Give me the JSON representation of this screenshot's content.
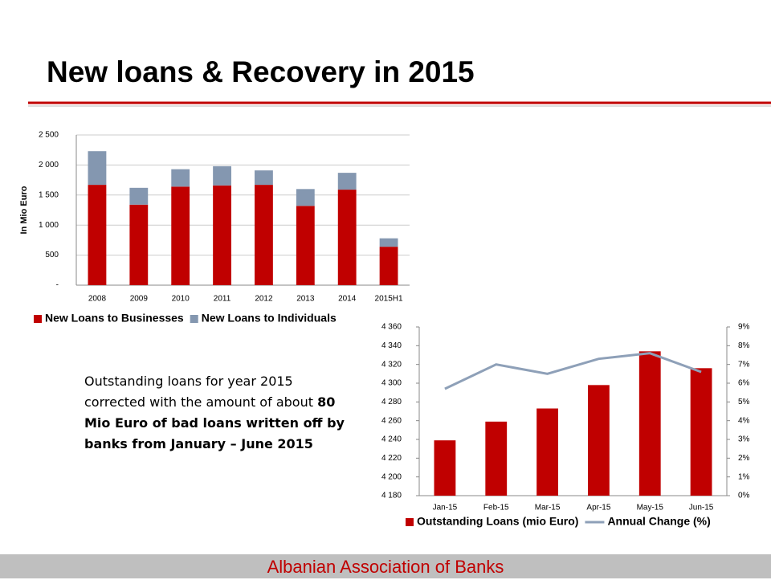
{
  "title": "New loans & Recovery in 2015",
  "note": {
    "plain": "Outstanding loans for year 2015 corrected with the amount of about",
    "bold": "80 Mio Euro of bad loans written off by banks from January – June 2015"
  },
  "footer": "Albanian Association of Banks",
  "chart_data": [
    {
      "type": "stacked-bar",
      "y_label": "In Mio Euro",
      "categories": [
        "2008",
        "2009",
        "2010",
        "2011",
        "2012",
        "2013",
        "2014",
        "2015H1"
      ],
      "series": [
        {
          "name": "New Loans to Businesses",
          "color": "#c00000",
          "values": [
            1670,
            1340,
            1640,
            1660,
            1670,
            1320,
            1590,
            640
          ]
        },
        {
          "name": "New Loans to Individuals",
          "color": "#8497b0",
          "values": [
            560,
            280,
            290,
            320,
            240,
            280,
            280,
            140
          ]
        }
      ],
      "ylim": [
        0,
        2500
      ],
      "yticks": [
        {
          "value": 0,
          "label": "-"
        },
        500,
        {
          "value": 1000,
          "label": "1 000"
        },
        {
          "value": 1500,
          "label": "1 500"
        },
        {
          "value": 2000,
          "label": "2 000"
        },
        {
          "value": 2500,
          "label": "2 500"
        }
      ],
      "grid": true
    },
    {
      "type": "bar-line",
      "categories": [
        "Jan-15",
        "Feb-15",
        "Mar-15",
        "Apr-15",
        "May-15",
        "Jun-15"
      ],
      "series": [
        {
          "name": "Outstanding Loans (mio Euro)",
          "color": "#c00000",
          "values": [
            4239,
            4259,
            4273,
            4298,
            4334,
            4316
          ]
        },
        {
          "name": "Annual Change (%)",
          "color": "#8ea0b8",
          "axis": "y2",
          "values": [
            5.7,
            7.0,
            6.5,
            7.3,
            7.6,
            6.6
          ]
        }
      ],
      "ylim": [
        4180,
        4360
      ],
      "yticks": [
        {
          "value": 4180,
          "label": "4 180"
        },
        {
          "value": 4200,
          "label": "4 200"
        },
        {
          "value": 4220,
          "label": "4 220"
        },
        {
          "value": 4240,
          "label": "4 240"
        },
        {
          "value": 4260,
          "label": "4 260"
        },
        {
          "value": 4280,
          "label": "4 280"
        },
        {
          "value": 4300,
          "label": "4 300"
        },
        {
          "value": 4320,
          "label": "4 320"
        },
        {
          "value": 4340,
          "label": "4 340"
        },
        {
          "value": 4360,
          "label": "4 360"
        }
      ],
      "y2lim": [
        0,
        9
      ],
      "y2ticks": [
        {
          "value": 0,
          "label": "0%"
        },
        {
          "value": 1,
          "label": "1%"
        },
        {
          "value": 2,
          "label": "2%"
        },
        {
          "value": 3,
          "label": "3%"
        },
        {
          "value": 4,
          "label": "4%"
        },
        {
          "value": 5,
          "label": "5%"
        },
        {
          "value": 6,
          "label": "6%"
        },
        {
          "value": 7,
          "label": "7%"
        },
        {
          "value": 8,
          "label": "8%"
        },
        {
          "value": 9,
          "label": "9%"
        }
      ],
      "grid": false
    }
  ]
}
